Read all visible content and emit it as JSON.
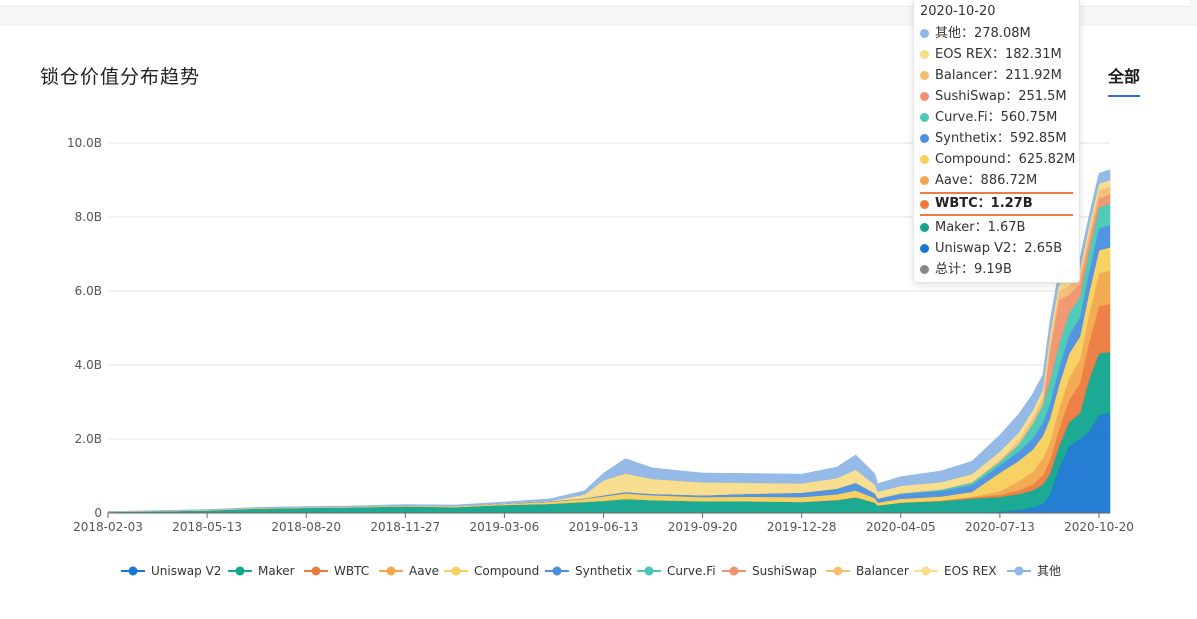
{
  "page": {
    "title": "锁仓价值分布趋势",
    "range_tab": "全部"
  },
  "colors": {
    "Uniswap V2": "#1976d2",
    "Maker": "#10a58e",
    "WBTC": "#ec7a3d",
    "Aave": "#f2a84a",
    "Compound": "#f8cf5c",
    "Synthetix": "#4a8fe0",
    "Curve.Fi": "#47c7b5",
    "SushiSwap": "#f0926d",
    "Balancer": "#f6bd73",
    "EOS REX": "#f8dc8a",
    "其他": "#8fb6e6"
  },
  "tooltip": {
    "date": "2020-10-20",
    "rows": [
      {
        "name": "其他",
        "value": "278.08M",
        "color": "#8fb6e6"
      },
      {
        "name": "EOS REX",
        "value": "182.31M",
        "color": "#f8dc8a"
      },
      {
        "name": "Balancer",
        "value": "211.92M",
        "color": "#f6bd73"
      },
      {
        "name": "SushiSwap",
        "value": "251.5M",
        "color": "#f0926d"
      },
      {
        "name": "Curve.Fi",
        "value": "560.75M",
        "color": "#47c7b5"
      },
      {
        "name": "Synthetix",
        "value": "592.85M",
        "color": "#4a8fe0"
      },
      {
        "name": "Compound",
        "value": "625.82M",
        "color": "#f8cf5c"
      },
      {
        "name": "Aave",
        "value": "886.72M",
        "color": "#f2a84a"
      },
      {
        "name": "WBTC",
        "value": "1.27B",
        "color": "#ec7a3d",
        "highlight": true
      },
      {
        "name": "Maker",
        "value": "1.67B",
        "color": "#10a58e"
      },
      {
        "name": "Uniswap V2",
        "value": "2.65B",
        "color": "#1976d2"
      },
      {
        "name": "总计",
        "value": "9.19B",
        "color": "#888888"
      }
    ]
  },
  "chart_data": {
    "type": "area",
    "stacked": true,
    "title": "锁仓价值分布趋势",
    "xlabel": "",
    "ylabel": "",
    "ylim": [
      0,
      10000000000
    ],
    "y_ticks": [
      0,
      2000000000,
      4000000000,
      6000000000,
      8000000000,
      10000000000
    ],
    "y_tick_labels": [
      "0",
      "2.0B",
      "4.0B",
      "6.0B",
      "8.0B",
      "10.0B"
    ],
    "x_range": [
      "2018-02-03",
      "2020-10-31"
    ],
    "x_ticks": [
      "2018-02-03",
      "2018-05-13",
      "2018-08-20",
      "2018-11-27",
      "2019-03-06",
      "2019-06-13",
      "2019-09-20",
      "2019-12-28",
      "2020-04-05",
      "2020-07-13",
      "2020-10-20"
    ],
    "legend_position": "bottom",
    "legend": [
      "Uniswap V2",
      "Maker",
      "WBTC",
      "Aave",
      "Compound",
      "Synthetix",
      "Curve.Fi",
      "SushiSwap",
      "Balancer",
      "EOS REX",
      "其他"
    ],
    "x": [
      "2018-02-03",
      "2018-04-01",
      "2018-05-13",
      "2018-07-01",
      "2018-08-20",
      "2018-10-01",
      "2018-11-27",
      "2019-01-15",
      "2019-03-06",
      "2019-04-20",
      "2019-05-25",
      "2019-06-13",
      "2019-07-05",
      "2019-08-01",
      "2019-09-20",
      "2019-11-01",
      "2019-12-28",
      "2020-02-01",
      "2020-02-20",
      "2020-03-10",
      "2020-03-13",
      "2020-04-05",
      "2020-05-15",
      "2020-06-15",
      "2020-07-13",
      "2020-08-01",
      "2020-08-15",
      "2020-08-25",
      "2020-09-01",
      "2020-09-10",
      "2020-09-20",
      "2020-10-01",
      "2020-10-10",
      "2020-10-20",
      "2020-10-31"
    ],
    "series": [
      {
        "name": "Uniswap V2",
        "values": [
          0,
          0,
          0,
          0,
          0,
          0,
          0,
          0,
          0,
          0,
          0,
          0,
          0,
          0,
          0,
          0,
          0,
          0,
          0,
          0,
          0,
          0,
          0,
          10000000,
          30000000,
          80000000,
          150000000,
          250000000,
          500000000,
          1200000000,
          1800000000,
          2000000000,
          2200000000,
          2650000000,
          2700000000
        ]
      },
      {
        "name": "Maker",
        "values": [
          30000000,
          50000000,
          70000000,
          120000000,
          140000000,
          150000000,
          180000000,
          160000000,
          220000000,
          250000000,
          300000000,
          330000000,
          380000000,
          350000000,
          320000000,
          320000000,
          300000000,
          350000000,
          420000000,
          280000000,
          200000000,
          280000000,
          320000000,
          380000000,
          400000000,
          430000000,
          460000000,
          520000000,
          550000000,
          600000000,
          650000000,
          700000000,
          1400000000,
          1670000000,
          1650000000
        ]
      },
      {
        "name": "WBTC",
        "values": [
          0,
          0,
          0,
          0,
          0,
          0,
          0,
          0,
          0,
          0,
          0,
          0,
          0,
          0,
          0,
          0,
          0,
          5000000,
          10000000,
          5000000,
          5000000,
          5000000,
          15000000,
          30000000,
          60000000,
          100000000,
          160000000,
          250000000,
          350000000,
          450000000,
          600000000,
          800000000,
          1000000000,
          1270000000,
          1300000000
        ]
      },
      {
        "name": "Aave",
        "values": [
          0,
          0,
          0,
          0,
          0,
          0,
          0,
          0,
          0,
          0,
          0,
          0,
          0,
          0,
          0,
          0,
          0,
          0,
          0,
          0,
          0,
          0,
          0,
          20000000,
          100000000,
          250000000,
          350000000,
          450000000,
          500000000,
          550000000,
          600000000,
          650000000,
          750000000,
          886720000,
          900000000
        ]
      },
      {
        "name": "Compound",
        "values": [
          5000000,
          10000000,
          10000000,
          15000000,
          15000000,
          15000000,
          20000000,
          20000000,
          30000000,
          50000000,
          80000000,
          120000000,
          150000000,
          130000000,
          110000000,
          120000000,
          130000000,
          150000000,
          180000000,
          120000000,
          80000000,
          100000000,
          110000000,
          130000000,
          500000000,
          550000000,
          600000000,
          620000000,
          650000000,
          650000000,
          650000000,
          620000000,
          600000000,
          625820000,
          630000000
        ]
      },
      {
        "name": "Synthetix",
        "values": [
          0,
          0,
          0,
          0,
          0,
          0,
          0,
          5000000,
          10000000,
          15000000,
          20000000,
          30000000,
          40000000,
          40000000,
          50000000,
          80000000,
          120000000,
          150000000,
          200000000,
          120000000,
          100000000,
          130000000,
          150000000,
          180000000,
          200000000,
          250000000,
          300000000,
          350000000,
          400000000,
          450000000,
          500000000,
          520000000,
          560000000,
          592850000,
          600000000
        ]
      },
      {
        "name": "Curve.Fi",
        "values": [
          0,
          0,
          0,
          0,
          0,
          0,
          0,
          0,
          0,
          0,
          0,
          0,
          0,
          0,
          0,
          0,
          0,
          5000000,
          10000000,
          10000000,
          10000000,
          20000000,
          40000000,
          70000000,
          100000000,
          200000000,
          400000000,
          500000000,
          600000000,
          650000000,
          600000000,
          550000000,
          550000000,
          560750000,
          580000000
        ]
      },
      {
        "name": "SushiSwap",
        "values": [
          0,
          0,
          0,
          0,
          0,
          0,
          0,
          0,
          0,
          0,
          0,
          0,
          0,
          0,
          0,
          0,
          0,
          0,
          0,
          0,
          0,
          0,
          0,
          0,
          0,
          0,
          0,
          0,
          800000000,
          1200000000,
          500000000,
          350000000,
          300000000,
          251500000,
          250000000
        ]
      },
      {
        "name": "Balancer",
        "values": [
          0,
          0,
          0,
          0,
          0,
          0,
          0,
          0,
          0,
          0,
          0,
          0,
          0,
          0,
          0,
          0,
          0,
          0,
          0,
          0,
          0,
          0,
          0,
          20000000,
          50000000,
          100000000,
          150000000,
          200000000,
          250000000,
          250000000,
          230000000,
          220000000,
          210000000,
          211920000,
          210000000
        ]
      },
      {
        "name": "EOS REX",
        "values": [
          0,
          0,
          0,
          0,
          0,
          0,
          0,
          0,
          0,
          5000000,
          100000000,
          400000000,
          500000000,
          400000000,
          350000000,
          300000000,
          250000000,
          280000000,
          350000000,
          230000000,
          180000000,
          200000000,
          200000000,
          210000000,
          220000000,
          220000000,
          210000000,
          200000000,
          200000000,
          190000000,
          190000000,
          185000000,
          180000000,
          182310000,
          180000000
        ]
      },
      {
        "name": "其他",
        "values": [
          5000000,
          10000000,
          15000000,
          15000000,
          20000000,
          25000000,
          30000000,
          30000000,
          40000000,
          60000000,
          100000000,
          200000000,
          400000000,
          300000000,
          250000000,
          250000000,
          250000000,
          300000000,
          400000000,
          300000000,
          220000000,
          250000000,
          300000000,
          350000000,
          450000000,
          500000000,
          450000000,
          400000000,
          380000000,
          350000000,
          300000000,
          290000000,
          280000000,
          278080000,
          280000000
        ]
      }
    ]
  }
}
